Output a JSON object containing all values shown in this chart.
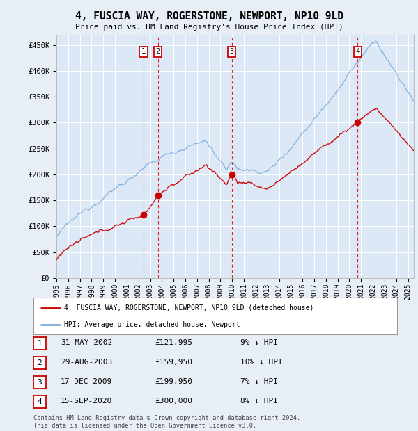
{
  "title": "4, FUSCIA WAY, ROGERSTONE, NEWPORT, NP10 9LD",
  "subtitle": "Price paid vs. HM Land Registry's House Price Index (HPI)",
  "ylabel_ticks": [
    "£0",
    "£50K",
    "£100K",
    "£150K",
    "£200K",
    "£250K",
    "£300K",
    "£350K",
    "£400K",
    "£450K"
  ],
  "ytick_values": [
    0,
    50000,
    100000,
    150000,
    200000,
    250000,
    300000,
    350000,
    400000,
    450000
  ],
  "ylim": [
    0,
    470000
  ],
  "xlim_start": 1995.0,
  "xlim_end": 2025.5,
  "sale_years": [
    2002.42,
    2003.66,
    2009.96,
    2020.71
  ],
  "sale_prices": [
    121995,
    159950,
    199950,
    300000
  ],
  "sale_labels": [
    "1",
    "2",
    "3",
    "4"
  ],
  "hpi_color": "#7aacdd",
  "price_color": "#cc0000",
  "vline_color": "#dd0000",
  "legend_label_price": "4, FUSCIA WAY, ROGERSTONE, NEWPORT, NP10 9LD (detached house)",
  "legend_label_hpi": "HPI: Average price, detached house, Newport",
  "table_rows": [
    [
      "1",
      "31-MAY-2002",
      "£121,995",
      "9% ↓ HPI"
    ],
    [
      "2",
      "29-AUG-2003",
      "£159,950",
      "10% ↓ HPI"
    ],
    [
      "3",
      "17-DEC-2009",
      "£199,950",
      "7% ↓ HPI"
    ],
    [
      "4",
      "15-SEP-2020",
      "£300,000",
      "8% ↓ HPI"
    ]
  ],
  "footer": "Contains HM Land Registry data © Crown copyright and database right 2024.\nThis data is licensed under the Open Government Licence v3.0.",
  "background_color": "#e8eef5",
  "plot_bg_color": "#dce8f5"
}
